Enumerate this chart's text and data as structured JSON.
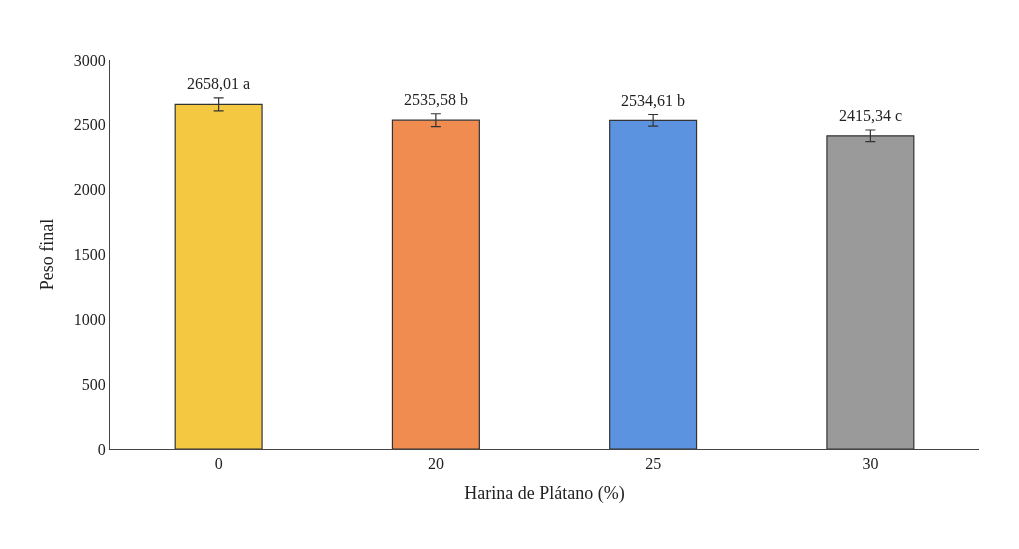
{
  "chart_data": {
    "type": "bar",
    "xlabel": "Harina de Plátano (%)",
    "ylabel": "Peso final",
    "categories": [
      "0",
      "20",
      "25",
      "30"
    ],
    "values": [
      2658.01,
      2535.58,
      2534.61,
      2415.34
    ],
    "colors": [
      "#f5c842",
      "#f08c50",
      "#5b93e0",
      "#9a9a9a"
    ],
    "errors": [
      50,
      50,
      45,
      45
    ],
    "value_labels": [
      "2658,01 a",
      "2535,58 b",
      "2534,61 b",
      "2415,34 c"
    ],
    "ylim": [
      0,
      3000
    ],
    "yticks": [
      0,
      500,
      1000,
      1500,
      2000,
      2500,
      3000
    ]
  }
}
